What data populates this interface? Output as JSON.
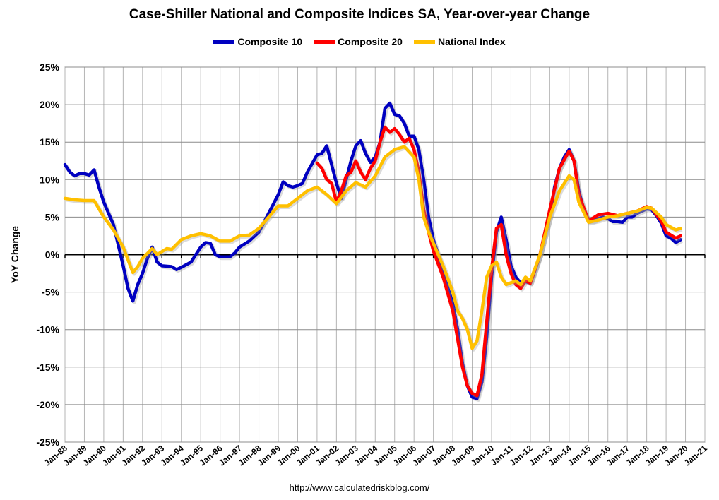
{
  "chart_data": {
    "type": "line",
    "title": "Case-Shiller National and Composite Indices SA, Year-over-year Change",
    "ylabel": "YoY Change",
    "xlabel": "",
    "ylim": [
      -25,
      25
    ],
    "yticks": [
      "-25%",
      "-20%",
      "-15%",
      "-10%",
      "-5%",
      "0%",
      "5%",
      "10%",
      "15%",
      "20%",
      "25%"
    ],
    "xlim": [
      "1988-01",
      "2021-01"
    ],
    "xticks": [
      "Jan-88",
      "Jan-89",
      "Jan-90",
      "Jan-91",
      "Jan-92",
      "Jan-93",
      "Jan-94",
      "Jan-95",
      "Jan-96",
      "Jan-97",
      "Jan-98",
      "Jan-99",
      "Jan-00",
      "Jan-01",
      "Jan-02",
      "Jan-03",
      "Jan-04",
      "Jan-05",
      "Jan-06",
      "Jan-07",
      "Jan-08",
      "Jan-09",
      "Jan-10",
      "Jan-11",
      "Jan-12",
      "Jan-13",
      "Jan-14",
      "Jan-15",
      "Jan-16",
      "Jan-17",
      "Jan-18",
      "Jan-19",
      "Jan-20",
      "Jan-21"
    ],
    "grid": true,
    "legend_position": "top",
    "series": [
      {
        "name": "Composite 10",
        "color": "#0000C0",
        "points": [
          [
            "1988-01",
            12
          ],
          [
            "1988-04",
            11
          ],
          [
            "1988-07",
            10.5
          ],
          [
            "1988-10",
            10.8
          ],
          [
            "1989-01",
            10.8
          ],
          [
            "1989-04",
            10.6
          ],
          [
            "1989-07",
            11.3
          ],
          [
            "1989-10",
            9
          ],
          [
            "1990-01",
            7
          ],
          [
            "1990-07",
            4
          ],
          [
            "1991-01",
            -1.5
          ],
          [
            "1991-04",
            -4.5
          ],
          [
            "1991-07",
            -6.2
          ],
          [
            "1991-10",
            -4
          ],
          [
            "1992-01",
            -2.5
          ],
          [
            "1992-04",
            -0.5
          ],
          [
            "1992-07",
            1
          ],
          [
            "1992-10",
            -1
          ],
          [
            "1993-01",
            -1.5
          ],
          [
            "1993-07",
            -1.6
          ],
          [
            "1993-10",
            -2
          ],
          [
            "1994-01",
            -1.7
          ],
          [
            "1994-07",
            -1
          ],
          [
            "1995-01",
            1
          ],
          [
            "1995-04",
            1.6
          ],
          [
            "1995-07",
            1.5
          ],
          [
            "1995-10",
            0
          ],
          [
            "1996-01",
            -0.3
          ],
          [
            "1996-07",
            -0.3
          ],
          [
            "1996-10",
            0.2
          ],
          [
            "1997-01",
            1
          ],
          [
            "1997-07",
            1.8
          ],
          [
            "1998-01",
            3
          ],
          [
            "1998-07",
            5.5
          ],
          [
            "1999-01",
            8
          ],
          [
            "1999-04",
            9.7
          ],
          [
            "1999-07",
            9.2
          ],
          [
            "1999-10",
            9
          ],
          [
            "2000-01",
            9.2
          ],
          [
            "2000-04",
            9.5
          ],
          [
            "2000-07",
            11
          ],
          [
            "2001-01",
            13.3
          ],
          [
            "2001-04",
            13.5
          ],
          [
            "2001-07",
            14.5
          ],
          [
            "2001-10",
            12
          ],
          [
            "2002-01",
            9.5
          ],
          [
            "2002-04",
            7.5
          ],
          [
            "2002-07",
            10
          ],
          [
            "2002-10",
            12.5
          ],
          [
            "2003-01",
            14.5
          ],
          [
            "2003-04",
            15.2
          ],
          [
            "2003-07",
            13.5
          ],
          [
            "2003-10",
            12.3
          ],
          [
            "2004-01",
            13
          ],
          [
            "2004-04",
            15
          ],
          [
            "2004-07",
            19.5
          ],
          [
            "2004-10",
            20.2
          ],
          [
            "2005-01",
            18.7
          ],
          [
            "2005-04",
            18.5
          ],
          [
            "2005-07",
            17.5
          ],
          [
            "2005-10",
            15.8
          ],
          [
            "2006-01",
            15.8
          ],
          [
            "2006-04",
            14
          ],
          [
            "2006-07",
            10
          ],
          [
            "2006-10",
            5
          ],
          [
            "2007-01",
            2
          ],
          [
            "2007-04",
            0
          ],
          [
            "2007-07",
            -2.5
          ],
          [
            "2007-10",
            -4.5
          ],
          [
            "2008-01",
            -6.5
          ],
          [
            "2008-04",
            -10
          ],
          [
            "2008-07",
            -14.5
          ],
          [
            "2008-10",
            -17.5
          ],
          [
            "2009-01",
            -19
          ],
          [
            "2009-04",
            -19.2
          ],
          [
            "2009-07",
            -17
          ],
          [
            "2009-10",
            -11
          ],
          [
            "2010-01",
            -3
          ],
          [
            "2010-04",
            3
          ],
          [
            "2010-07",
            5
          ],
          [
            "2010-10",
            2
          ],
          [
            "2011-01",
            -1.5
          ],
          [
            "2011-04",
            -3
          ],
          [
            "2011-07",
            -3.8
          ],
          [
            "2011-10",
            -3.6
          ],
          [
            "2012-01",
            -3.8
          ],
          [
            "2012-04",
            -2
          ],
          [
            "2012-07",
            0
          ],
          [
            "2013-01",
            5
          ],
          [
            "2013-04",
            9
          ],
          [
            "2013-07",
            11.5
          ],
          [
            "2013-10",
            13
          ],
          [
            "2014-01",
            14
          ],
          [
            "2014-04",
            12.5
          ],
          [
            "2014-07",
            8.5
          ],
          [
            "2014-10",
            6
          ],
          [
            "2015-01",
            4.5
          ],
          [
            "2015-04",
            4.5
          ],
          [
            "2015-07",
            4.8
          ],
          [
            "2015-10",
            5
          ],
          [
            "2016-01",
            4.8
          ],
          [
            "2016-04",
            4.4
          ],
          [
            "2016-07",
            4.4
          ],
          [
            "2016-10",
            4.3
          ],
          [
            "2017-01",
            5
          ],
          [
            "2017-04",
            5
          ],
          [
            "2017-07",
            5.5
          ],
          [
            "2017-10",
            5.8
          ],
          [
            "2018-01",
            6.1
          ],
          [
            "2018-04",
            6
          ],
          [
            "2018-07",
            5.2
          ],
          [
            "2018-10",
            4.2
          ],
          [
            "2019-01",
            2.5
          ],
          [
            "2019-04",
            2.2
          ],
          [
            "2019-07",
            1.6
          ],
          [
            "2019-10",
            2
          ]
        ]
      },
      {
        "name": "Composite 20",
        "color": "#FF0000",
        "points": [
          [
            "2001-01",
            12.2
          ],
          [
            "2001-04",
            11.5
          ],
          [
            "2001-07",
            10
          ],
          [
            "2001-10",
            9.5
          ],
          [
            "2002-01",
            7
          ],
          [
            "2002-04",
            8.5
          ],
          [
            "2002-07",
            10.5
          ],
          [
            "2002-10",
            11
          ],
          [
            "2003-01",
            12.5
          ],
          [
            "2003-04",
            11
          ],
          [
            "2003-07",
            10
          ],
          [
            "2003-10",
            11.5
          ],
          [
            "2004-01",
            12.5
          ],
          [
            "2004-04",
            15
          ],
          [
            "2004-07",
            17
          ],
          [
            "2004-10",
            16.3
          ],
          [
            "2005-01",
            16.8
          ],
          [
            "2005-04",
            16
          ],
          [
            "2005-07",
            15
          ],
          [
            "2005-10",
            15.5
          ],
          [
            "2006-01",
            14
          ],
          [
            "2006-04",
            11
          ],
          [
            "2006-07",
            6
          ],
          [
            "2006-10",
            3
          ],
          [
            "2007-01",
            0.5
          ],
          [
            "2007-07",
            -3
          ],
          [
            "2008-01",
            -7.5
          ],
          [
            "2008-07",
            -15
          ],
          [
            "2008-10",
            -17.5
          ],
          [
            "2009-01",
            -18.5
          ],
          [
            "2009-04",
            -18.8
          ],
          [
            "2009-07",
            -16
          ],
          [
            "2009-10",
            -9
          ],
          [
            "2010-01",
            -2
          ],
          [
            "2010-04",
            3.5
          ],
          [
            "2010-07",
            4
          ],
          [
            "2010-10",
            0
          ],
          [
            "2011-01",
            -2.5
          ],
          [
            "2011-04",
            -4
          ],
          [
            "2011-07",
            -4.5
          ],
          [
            "2011-10",
            -3.5
          ],
          [
            "2012-01",
            -3.8
          ],
          [
            "2012-07",
            0
          ],
          [
            "2013-01",
            6
          ],
          [
            "2013-07",
            11.5
          ],
          [
            "2014-01",
            13.8
          ],
          [
            "2014-04",
            12.5
          ],
          [
            "2014-07",
            8
          ],
          [
            "2015-01",
            4.5
          ],
          [
            "2015-07",
            5.3
          ],
          [
            "2016-01",
            5.5
          ],
          [
            "2016-07",
            5.2
          ],
          [
            "2017-01",
            5.5
          ],
          [
            "2017-07",
            5.8
          ],
          [
            "2018-01",
            6.4
          ],
          [
            "2018-04",
            6.2
          ],
          [
            "2018-10",
            4.5
          ],
          [
            "2019-01",
            3
          ],
          [
            "2019-07",
            2.2
          ],
          [
            "2019-10",
            2.5
          ]
        ]
      },
      {
        "name": "National Index",
        "color": "#FFC000",
        "points": [
          [
            "1988-01",
            7.5
          ],
          [
            "1988-07",
            7.3
          ],
          [
            "1989-01",
            7.2
          ],
          [
            "1989-07",
            7.2
          ],
          [
            "1990-01",
            5
          ],
          [
            "1990-07",
            3.3
          ],
          [
            "1991-01",
            1
          ],
          [
            "1991-07",
            -2.4
          ],
          [
            "1991-10",
            -1.6
          ],
          [
            "1992-01",
            -0.5
          ],
          [
            "1992-07",
            0.8
          ],
          [
            "1992-10",
            0
          ],
          [
            "1993-04",
            0.8
          ],
          [
            "1993-07",
            0.7
          ],
          [
            "1994-01",
            2
          ],
          [
            "1994-07",
            2.5
          ],
          [
            "1995-01",
            2.8
          ],
          [
            "1995-07",
            2.5
          ],
          [
            "1996-01",
            1.8
          ],
          [
            "1996-07",
            1.8
          ],
          [
            "1997-01",
            2.5
          ],
          [
            "1997-07",
            2.6
          ],
          [
            "1998-01",
            3.5
          ],
          [
            "1998-07",
            5
          ],
          [
            "1999-01",
            6.5
          ],
          [
            "1999-07",
            6.5
          ],
          [
            "2000-01",
            7.5
          ],
          [
            "2000-07",
            8.5
          ],
          [
            "2001-01",
            9
          ],
          [
            "2001-07",
            8
          ],
          [
            "2002-01",
            6.8
          ],
          [
            "2002-07",
            8.5
          ],
          [
            "2003-01",
            9.6
          ],
          [
            "2003-07",
            9
          ],
          [
            "2004-01",
            10.5
          ],
          [
            "2004-07",
            13
          ],
          [
            "2005-01",
            14
          ],
          [
            "2005-07",
            14.4
          ],
          [
            "2006-01",
            13
          ],
          [
            "2006-04",
            10
          ],
          [
            "2006-07",
            5
          ],
          [
            "2006-10",
            3
          ],
          [
            "2007-01",
            1.5
          ],
          [
            "2007-07",
            -1.5
          ],
          [
            "2008-01",
            -5
          ],
          [
            "2008-04",
            -7.5
          ],
          [
            "2008-07",
            -8.5
          ],
          [
            "2008-10",
            -10
          ],
          [
            "2009-01",
            -12.5
          ],
          [
            "2009-04",
            -11.5
          ],
          [
            "2009-07",
            -7.5
          ],
          [
            "2009-10",
            -3
          ],
          [
            "2010-01",
            -1.5
          ],
          [
            "2010-04",
            -1
          ],
          [
            "2010-07",
            -3
          ],
          [
            "2010-10",
            -4
          ],
          [
            "2011-04",
            -3.5
          ],
          [
            "2011-07",
            -4
          ],
          [
            "2011-10",
            -3
          ],
          [
            "2012-01",
            -3.5
          ],
          [
            "2012-07",
            0
          ],
          [
            "2013-01",
            5
          ],
          [
            "2013-07",
            8.5
          ],
          [
            "2014-01",
            10.5
          ],
          [
            "2014-04",
            10
          ],
          [
            "2014-07",
            7
          ],
          [
            "2015-01",
            4.3
          ],
          [
            "2015-07",
            4.6
          ],
          [
            "2016-01",
            5
          ],
          [
            "2016-07",
            5.2
          ],
          [
            "2017-01",
            5.5
          ],
          [
            "2017-07",
            5.8
          ],
          [
            "2018-01",
            6.3
          ],
          [
            "2018-04",
            6.2
          ],
          [
            "2018-10",
            5
          ],
          [
            "2019-01",
            4
          ],
          [
            "2019-07",
            3.3
          ],
          [
            "2019-10",
            3.5
          ]
        ]
      }
    ],
    "source": "http://www.calculatedriskblog.com/"
  }
}
